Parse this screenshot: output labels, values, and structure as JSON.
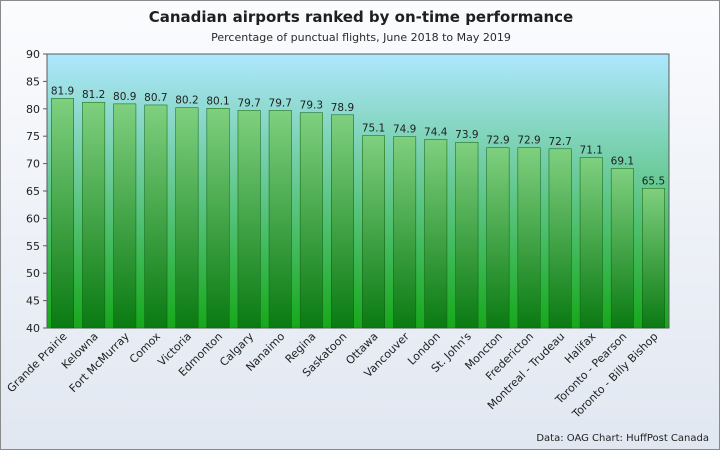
{
  "chart_data": {
    "type": "bar",
    "title": "Canadian airports ranked by on-time performance",
    "subtitle": "Percentage of punctual flights, June 2018 to May 2019",
    "source": "Data: OAG Chart: HuffPost Canada",
    "categories": [
      "Grande Prairie",
      "Kelowna",
      "Fort McMurray",
      "Comox",
      "Victoria",
      "Edmonton",
      "Calgary",
      "Nanaimo",
      "Regina",
      "Saskatoon",
      "Ottawa",
      "Vancouver",
      "London",
      "St. John's",
      "Moncton",
      "Fredericton",
      "Montreal - Trudeau",
      "Halifax",
      "Toronto - Pearson",
      "Toronto - Billy Bishop"
    ],
    "values": [
      81.9,
      81.2,
      80.9,
      80.7,
      80.2,
      80.1,
      79.7,
      79.7,
      79.3,
      78.9,
      75.1,
      74.9,
      74.4,
      73.9,
      72.9,
      72.9,
      72.7,
      71.1,
      69.1,
      65.5
    ],
    "ylim": [
      40,
      90
    ],
    "yticks": [
      40,
      45,
      50,
      55,
      60,
      65,
      70,
      75,
      80,
      85,
      90
    ],
    "xlabel": "",
    "ylabel": "",
    "grid": false,
    "legend": "none",
    "colors": {
      "bar_top": "#7fd07f",
      "bar_bottom": "#0a7a12",
      "plot_top": "#aee7ff",
      "plot_bottom": "#16a81a"
    }
  }
}
